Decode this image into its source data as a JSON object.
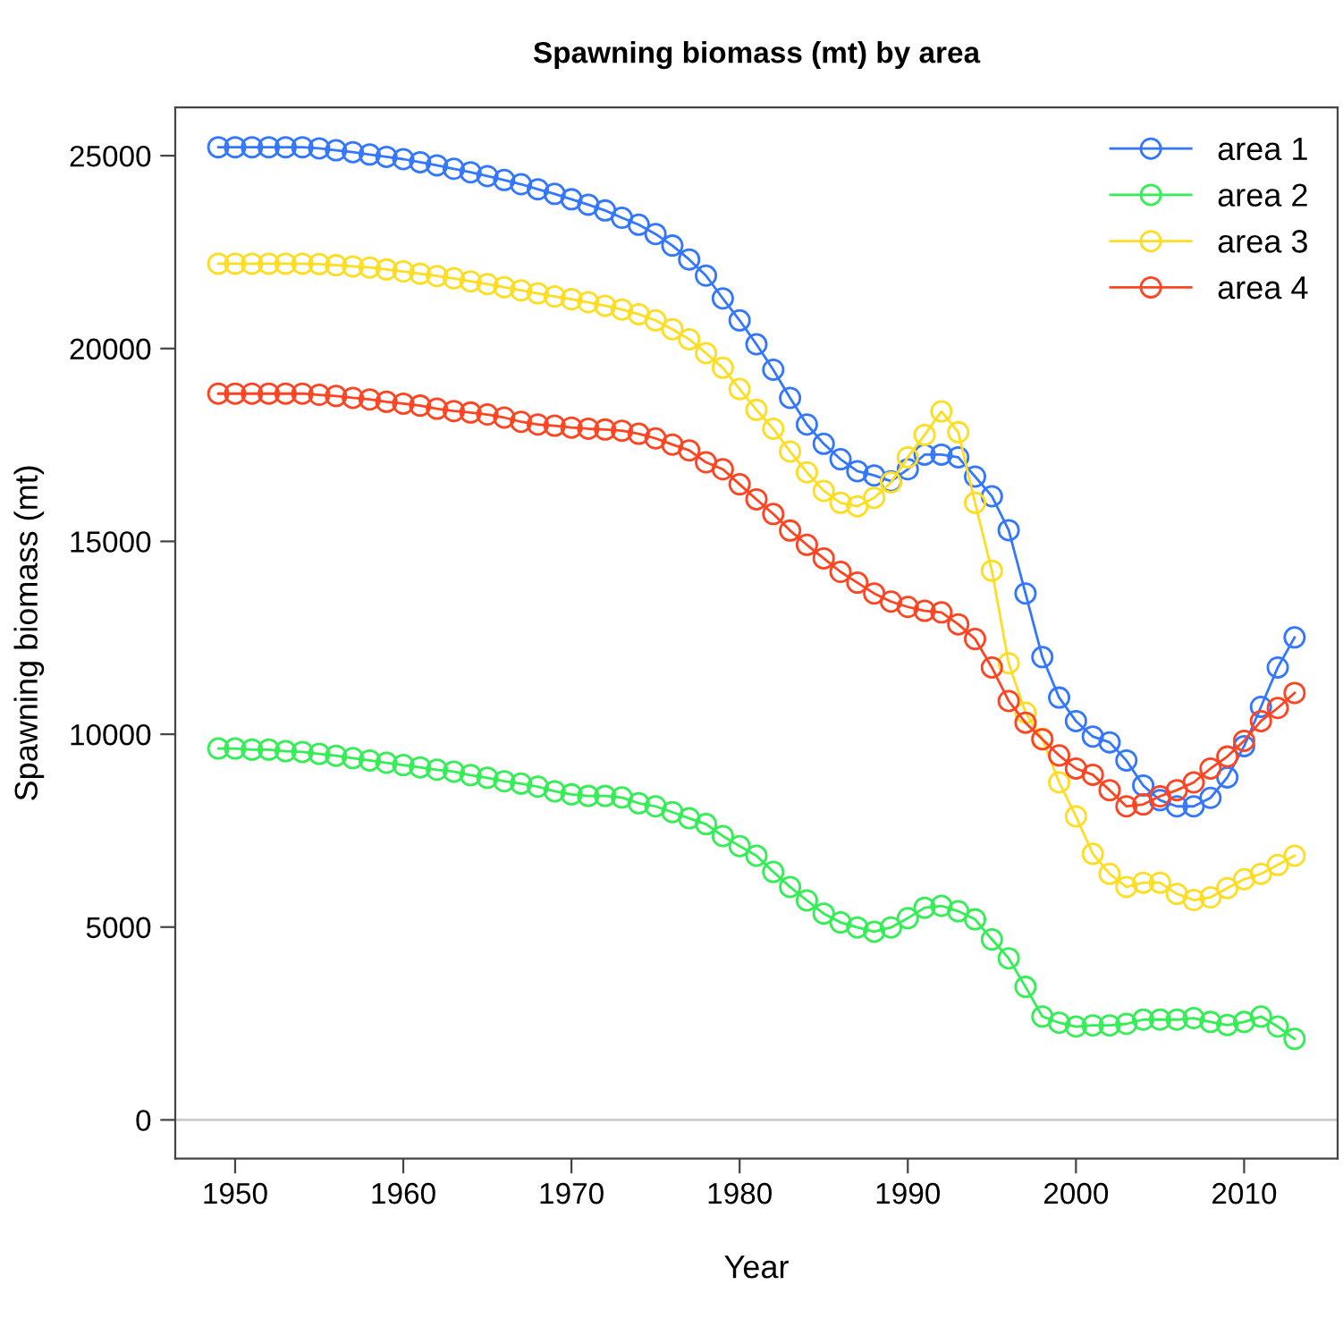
{
  "chart_data": {
    "type": "line",
    "title": "Spawning biomass (mt) by area",
    "xlabel": "Year",
    "ylabel": "Spawning biomass (mt)",
    "x": [
      1949,
      1950,
      1951,
      1952,
      1953,
      1954,
      1955,
      1956,
      1957,
      1958,
      1959,
      1960,
      1961,
      1962,
      1963,
      1964,
      1965,
      1966,
      1967,
      1968,
      1969,
      1970,
      1971,
      1972,
      1973,
      1974,
      1975,
      1976,
      1977,
      1978,
      1979,
      1980,
      1981,
      1982,
      1983,
      1984,
      1985,
      1986,
      1987,
      1988,
      1989,
      1990,
      1991,
      1992,
      1993,
      1994,
      1995,
      1996,
      1997,
      1998,
      1999,
      2000,
      2001,
      2002,
      2003,
      2004,
      2005,
      2006,
      2007,
      2008,
      2009,
      2010,
      2011,
      2012,
      2013
    ],
    "series": [
      {
        "name": "area 1",
        "color": "#3377ff",
        "values": [
          25220,
          25220,
          25220,
          25220,
          25220,
          25220,
          25190,
          25140,
          25090,
          25030,
          24970,
          24910,
          24830,
          24750,
          24660,
          24570,
          24470,
          24370,
          24260,
          24130,
          24010,
          23870,
          23730,
          23580,
          23390,
          23210,
          22970,
          22670,
          22310,
          21890,
          21300,
          20730,
          20110,
          19450,
          18720,
          18030,
          17530,
          17130,
          16820,
          16710,
          16560,
          16870,
          17250,
          17250,
          17180,
          16680,
          16170,
          15290,
          13650,
          12000,
          10950,
          10340,
          9940,
          9790,
          9320,
          8670,
          8290,
          8130,
          8130,
          8350,
          8880,
          9690,
          10710,
          11730,
          12510
        ]
      },
      {
        "name": "area 2",
        "color": "#33ee55",
        "values": [
          9630,
          9630,
          9600,
          9600,
          9560,
          9540,
          9490,
          9440,
          9380,
          9320,
          9260,
          9200,
          9140,
          9080,
          9030,
          8940,
          8870,
          8780,
          8720,
          8640,
          8520,
          8440,
          8400,
          8400,
          8360,
          8210,
          8130,
          7980,
          7820,
          7670,
          7360,
          7100,
          6850,
          6430,
          6040,
          5690,
          5350,
          5120,
          4990,
          4880,
          4990,
          5230,
          5500,
          5550,
          5410,
          5200,
          4680,
          4190,
          3450,
          2680,
          2520,
          2420,
          2450,
          2450,
          2490,
          2600,
          2600,
          2600,
          2640,
          2540,
          2460,
          2540,
          2680,
          2420,
          2100
        ]
      },
      {
        "name": "area 3",
        "color": "#ffdd22",
        "values": [
          22200,
          22200,
          22200,
          22200,
          22200,
          22200,
          22190,
          22160,
          22130,
          22100,
          22050,
          22000,
          21940,
          21880,
          21820,
          21740,
          21670,
          21590,
          21510,
          21430,
          21350,
          21280,
          21200,
          21110,
          21010,
          20890,
          20730,
          20500,
          20240,
          19880,
          19500,
          18950,
          18410,
          17920,
          17330,
          16790,
          16310,
          16000,
          15910,
          16130,
          16530,
          17180,
          17760,
          18370,
          17830,
          16000,
          14240,
          11840,
          10560,
          9880,
          8750,
          7870,
          6900,
          6380,
          6040,
          6150,
          6150,
          5860,
          5700,
          5770,
          6010,
          6240,
          6380,
          6610,
          6850
        ]
      },
      {
        "name": "area 4",
        "color": "#ff4422",
        "values": [
          18830,
          18830,
          18830,
          18830,
          18830,
          18830,
          18800,
          18770,
          18720,
          18680,
          18620,
          18570,
          18520,
          18440,
          18380,
          18340,
          18290,
          18210,
          18100,
          18030,
          18000,
          17950,
          17920,
          17900,
          17870,
          17790,
          17670,
          17510,
          17360,
          17050,
          16870,
          16480,
          16090,
          15710,
          15280,
          14910,
          14560,
          14210,
          13930,
          13650,
          13440,
          13300,
          13200,
          13160,
          12850,
          12470,
          11730,
          10860,
          10300,
          9870,
          9450,
          9110,
          8950,
          8550,
          8130,
          8180,
          8390,
          8550,
          8750,
          9110,
          9420,
          9830,
          10340,
          10680,
          11070
        ]
      }
    ],
    "xlim": [
      1946.44,
      2015.56
    ],
    "ylim": [
      -1000,
      26250
    ],
    "xticks": [
      1950,
      1960,
      1970,
      1980,
      1990,
      2000,
      2010
    ],
    "yticks": [
      0,
      5000,
      10000,
      15000,
      20000,
      25000
    ],
    "ref_lines": [
      {
        "axis": "y",
        "value": 0,
        "color": "#cccccc"
      }
    ],
    "marker": "circle",
    "line_style": "solid",
    "legend": "top right",
    "grid": false
  }
}
